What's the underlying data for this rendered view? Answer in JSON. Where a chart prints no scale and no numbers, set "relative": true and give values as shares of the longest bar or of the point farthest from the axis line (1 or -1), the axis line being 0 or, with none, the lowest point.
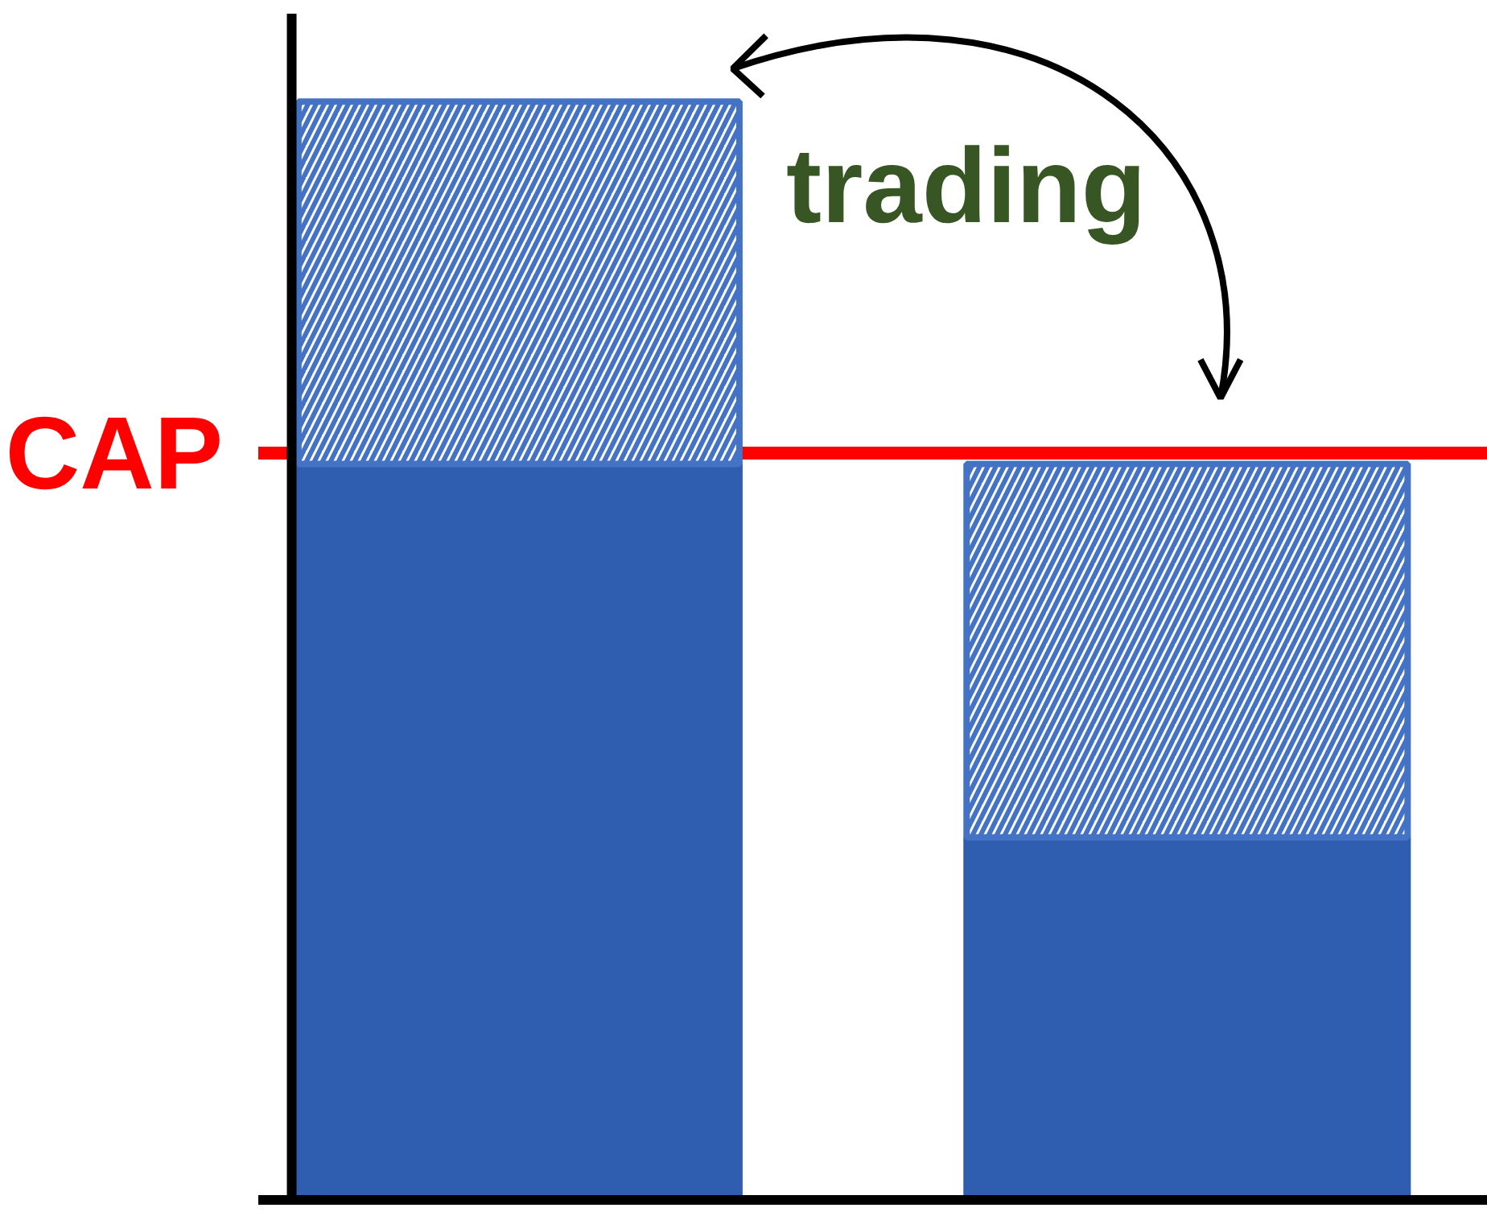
{
  "chart_data": {
    "type": "bar",
    "stacked": true,
    "relative": true,
    "categories": [
      null,
      null
    ],
    "series": [
      {
        "color": "#2f5db0",
        "values": [
          0.67,
          0.33
        ]
      },
      {
        "color": "#4472c4",
        "values": [
          0.33,
          0.34
        ]
      }
    ],
    "ref_lines": [
      {
        "axis": "y",
        "value": 0.68,
        "label": "CAP",
        "color": "#ff0000"
      }
    ],
    "annotations": [
      "trading"
    ],
    "grid": false
  }
}
